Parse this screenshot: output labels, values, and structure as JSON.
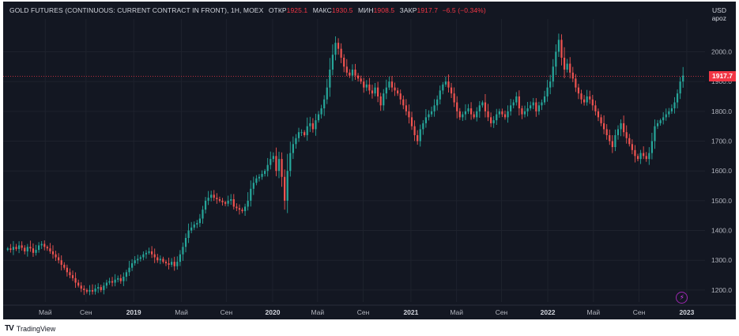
{
  "header": {
    "symbol": "GOLD FUTURES (CONTINUOUS: CURRENT CONTRACT IN FRONT), 1Н, MOEX",
    "open_label": "ОТКР",
    "open": "1925.1",
    "high_label": "МАКС",
    "high": "1930.5",
    "low_label": "МИН",
    "low": "1908.5",
    "close_label": "ЗАКР",
    "close": "1917.7",
    "change": "−6.5 (−0.34%)"
  },
  "currency": "USD",
  "currency_sub": "apoz",
  "last_price_label": "1917.7",
  "footer": {
    "brand": "TradingView"
  },
  "colors": {
    "background": "#131722",
    "up": "#26a69a",
    "down": "#ef5350",
    "text": "#b2b5be"
  },
  "chart_data": {
    "type": "candlestick",
    "y_range": [
      1160,
      2110
    ],
    "y_ticks": [
      "2000.0",
      "1900.0",
      "1800.0",
      "1700.0",
      "1600.0",
      "1500.0",
      "1400.0",
      "1300.0",
      "1200.0"
    ],
    "y_tick_values": [
      2000,
      1900,
      1800,
      1700,
      1600,
      1500,
      1400,
      1300,
      1200
    ],
    "x_ticks": [
      {
        "label": "Май",
        "t": 0.06,
        "bold": false
      },
      {
        "label": "Сен",
        "t": 0.118,
        "bold": false
      },
      {
        "label": "2019",
        "t": 0.186,
        "bold": true
      },
      {
        "label": "Май",
        "t": 0.254,
        "bold": false
      },
      {
        "label": "Сен",
        "t": 0.318,
        "bold": false
      },
      {
        "label": "2020",
        "t": 0.384,
        "bold": true
      },
      {
        "label": "Май",
        "t": 0.448,
        "bold": false
      },
      {
        "label": "Сен",
        "t": 0.513,
        "bold": false
      },
      {
        "label": "2021",
        "t": 0.581,
        "bold": true
      },
      {
        "label": "Май",
        "t": 0.646,
        "bold": false
      },
      {
        "label": "Сен",
        "t": 0.71,
        "bold": false
      },
      {
        "label": "2022",
        "t": 0.776,
        "bold": true
      },
      {
        "label": "Май",
        "t": 0.841,
        "bold": false
      },
      {
        "label": "Сен",
        "t": 0.906,
        "bold": false
      },
      {
        "label": "2023",
        "t": 0.974,
        "bold": true
      }
    ],
    "last_price": 1917.7,
    "closes": [
      1340,
      1335,
      1345,
      1338,
      1350,
      1342,
      1330,
      1345,
      1340,
      1325,
      1335,
      1350,
      1355,
      1345,
      1340,
      1330,
      1320,
      1310,
      1300,
      1285,
      1275,
      1260,
      1250,
      1240,
      1225,
      1215,
      1205,
      1200,
      1195,
      1200,
      1195,
      1205,
      1210,
      1200,
      1215,
      1225,
      1230,
      1225,
      1235,
      1240,
      1230,
      1245,
      1260,
      1275,
      1290,
      1300,
      1305,
      1310,
      1320,
      1325,
      1330,
      1320,
      1310,
      1300,
      1305,
      1295,
      1290,
      1285,
      1295,
      1280,
      1295,
      1320,
      1345,
      1375,
      1400,
      1410,
      1420,
      1425,
      1440,
      1470,
      1500,
      1510,
      1520,
      1510,
      1505,
      1500,
      1495,
      1490,
      1500,
      1505,
      1480,
      1475,
      1470,
      1465,
      1480,
      1500,
      1540,
      1560,
      1575,
      1580,
      1590,
      1600,
      1620,
      1640,
      1650,
      1600,
      1640,
      1580,
      1500,
      1600,
      1660,
      1690,
      1710,
      1730,
      1730,
      1720,
      1750,
      1760,
      1740,
      1770,
      1790,
      1810,
      1840,
      1880,
      1940,
      1990,
      2030,
      2010,
      1980,
      1950,
      1930,
      1920,
      1940,
      1920,
      1910,
      1900,
      1880,
      1890,
      1870,
      1860,
      1880,
      1850,
      1820,
      1860,
      1880,
      1900,
      1880,
      1870,
      1860,
      1840,
      1820,
      1800,
      1780,
      1750,
      1720,
      1700,
      1740,
      1760,
      1780,
      1790,
      1800,
      1820,
      1840,
      1870,
      1890,
      1900,
      1880,
      1860,
      1830,
      1800,
      1780,
      1790,
      1800,
      1810,
      1790,
      1780,
      1800,
      1820,
      1830,
      1800,
      1780,
      1760,
      1770,
      1790,
      1800,
      1790,
      1780,
      1800,
      1820,
      1830,
      1850,
      1810,
      1790,
      1800,
      1810,
      1820,
      1830,
      1800,
      1820,
      1830,
      1850,
      1880,
      1900,
      1950,
      2000,
      2040,
      1980,
      1940,
      1960,
      1930,
      1910,
      1880,
      1860,
      1840,
      1830,
      1850,
      1840,
      1820,
      1800,
      1780,
      1760,
      1740,
      1720,
      1700,
      1680,
      1720,
      1740,
      1760,
      1730,
      1710,
      1690,
      1670,
      1650,
      1640,
      1660,
      1650,
      1640,
      1660,
      1700,
      1750,
      1760,
      1770,
      1780,
      1790,
      1800,
      1810,
      1830,
      1860,
      1900,
      1920
    ]
  }
}
